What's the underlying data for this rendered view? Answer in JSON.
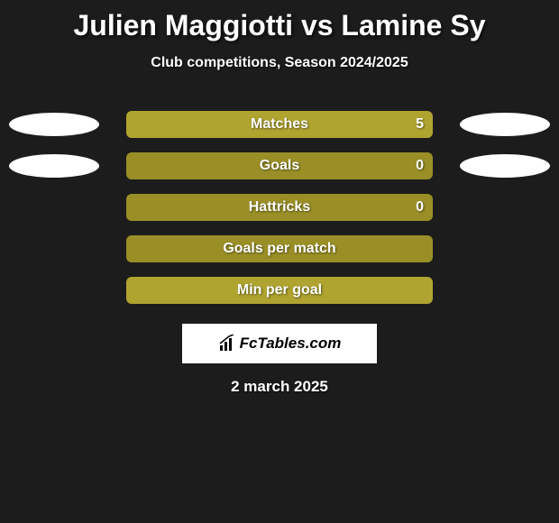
{
  "title": "Julien Maggiotti vs Lamine Sy",
  "subtitle": "Club competitions, Season 2024/2025",
  "colors": {
    "bar_light": "#b0a431",
    "bar_dark": "#9a8f27",
    "ellipse": "#ffffff",
    "background": "#1c1c1c"
  },
  "rows": [
    {
      "label": "Matches",
      "value": "5",
      "left_ellipse": true,
      "right_ellipse": true,
      "color": "#b0a431"
    },
    {
      "label": "Goals",
      "value": "0",
      "left_ellipse": true,
      "right_ellipse": true,
      "color": "#9a8f27"
    },
    {
      "label": "Hattricks",
      "value": "0",
      "left_ellipse": false,
      "right_ellipse": false,
      "color": "#9a8f27"
    },
    {
      "label": "Goals per match",
      "value": "",
      "left_ellipse": false,
      "right_ellipse": false,
      "color": "#9a8f27"
    },
    {
      "label": "Min per goal",
      "value": "",
      "left_ellipse": false,
      "right_ellipse": false,
      "color": "#b0a431"
    }
  ],
  "logo_text": "FcTables.com",
  "date": "2 march 2025"
}
